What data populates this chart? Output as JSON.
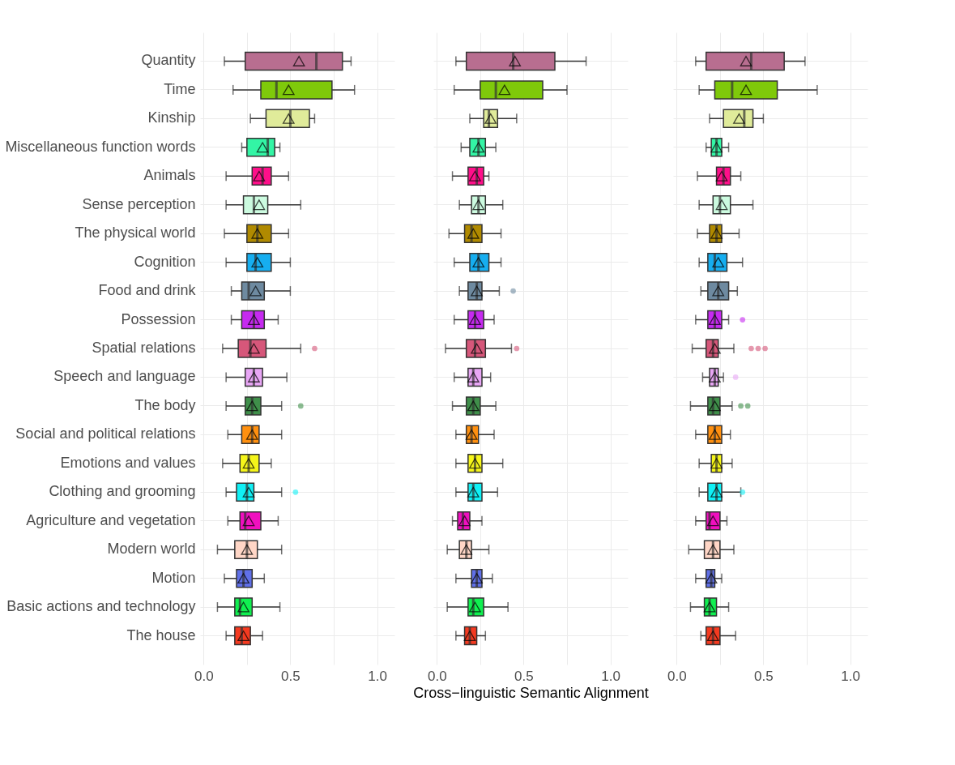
{
  "chart_data": [
    {
      "type": "box",
      "orientation": "horizontal",
      "grid": true,
      "legend": false,
      "categories": [
        "Quantity",
        "Time",
        "Kinship",
        "Miscellaneous function words",
        "Animals",
        "Sense perception",
        "The physical world",
        "Cognition",
        "Food and drink",
        "Possession",
        "Spatial relations",
        "Speech and language",
        "The body",
        "Social and political relations",
        "Emotions and values",
        "Clothing and grooming",
        "Agriculture and vegetation",
        "Modern world",
        "Motion",
        "Basic actions and technology",
        "The house"
      ],
      "colors": [
        "#b86e90",
        "#7fc90a",
        "#e0eb9a",
        "#33f5a5",
        "#ff0f8a",
        "#ccfbe0",
        "#b08a00",
        "#16aef0",
        "#6e8aa0",
        "#c62af0",
        "#d6577a",
        "#e8a6f5",
        "#3f8f4a",
        "#ff9010",
        "#f5f51a",
        "#10f0f5",
        "#f00fbf",
        "#ffd6c6",
        "#6070e8",
        "#10f050",
        "#f53a20"
      ],
      "boxes": [
        {
          "low": 0.12,
          "q1": 0.24,
          "median": 0.65,
          "q3": 0.8,
          "high": 0.85,
          "mean": 0.55
        },
        {
          "low": 0.17,
          "q1": 0.33,
          "median": 0.42,
          "q3": 0.74,
          "high": 0.87,
          "mean": 0.49
        },
        {
          "low": 0.27,
          "q1": 0.36,
          "median": 0.5,
          "q3": 0.61,
          "high": 0.64,
          "mean": 0.49
        },
        {
          "low": 0.22,
          "q1": 0.25,
          "median": 0.37,
          "q3": 0.41,
          "high": 0.44,
          "mean": 0.34
        },
        {
          "low": 0.13,
          "q1": 0.28,
          "median": 0.34,
          "q3": 0.39,
          "high": 0.49,
          "mean": 0.32
        },
        {
          "low": 0.13,
          "q1": 0.23,
          "median": 0.29,
          "q3": 0.37,
          "high": 0.56,
          "mean": 0.32
        },
        {
          "low": 0.12,
          "q1": 0.25,
          "median": 0.31,
          "q3": 0.39,
          "high": 0.49,
          "mean": 0.31
        },
        {
          "low": 0.13,
          "q1": 0.25,
          "median": 0.3,
          "q3": 0.39,
          "high": 0.5,
          "mean": 0.31
        },
        {
          "low": 0.16,
          "q1": 0.22,
          "median": 0.26,
          "q3": 0.35,
          "high": 0.5,
          "mean": 0.3
        },
        {
          "low": 0.16,
          "q1": 0.22,
          "median": 0.29,
          "q3": 0.35,
          "high": 0.43,
          "mean": 0.29
        },
        {
          "low": 0.11,
          "q1": 0.2,
          "median": 0.27,
          "q3": 0.36,
          "high": 0.56,
          "mean": 0.29,
          "outliers": [
            0.64
          ]
        },
        {
          "low": 0.13,
          "q1": 0.24,
          "median": 0.29,
          "q3": 0.34,
          "high": 0.48,
          "mean": 0.29
        },
        {
          "low": 0.13,
          "q1": 0.24,
          "median": 0.28,
          "q3": 0.33,
          "high": 0.45,
          "mean": 0.28,
          "outliers": [
            0.56
          ]
        },
        {
          "low": 0.14,
          "q1": 0.22,
          "median": 0.28,
          "q3": 0.32,
          "high": 0.45,
          "mean": 0.28
        },
        {
          "low": 0.11,
          "q1": 0.21,
          "median": 0.26,
          "q3": 0.32,
          "high": 0.39,
          "mean": 0.26
        },
        {
          "low": 0.13,
          "q1": 0.19,
          "median": 0.25,
          "q3": 0.29,
          "high": 0.45,
          "mean": 0.26,
          "outliers": [
            0.53
          ]
        },
        {
          "low": 0.14,
          "q1": 0.21,
          "median": 0.24,
          "q3": 0.33,
          "high": 0.43,
          "mean": 0.26
        },
        {
          "low": 0.08,
          "q1": 0.18,
          "median": 0.25,
          "q3": 0.31,
          "high": 0.45,
          "mean": 0.25
        },
        {
          "low": 0.12,
          "q1": 0.19,
          "median": 0.23,
          "q3": 0.28,
          "high": 0.35,
          "mean": 0.23
        },
        {
          "low": 0.08,
          "q1": 0.18,
          "median": 0.21,
          "q3": 0.28,
          "high": 0.44,
          "mean": 0.23
        },
        {
          "low": 0.13,
          "q1": 0.18,
          "median": 0.22,
          "q3": 0.27,
          "high": 0.34,
          "mean": 0.23
        }
      ],
      "xlim": [
        -0.02,
        1.1
      ],
      "xticks": [
        {
          "value": 0,
          "label": "0.0"
        },
        {
          "value": 0.25,
          "label": null
        },
        {
          "value": 0.5,
          "label": "0.5"
        },
        {
          "value": 0.75,
          "label": null
        },
        {
          "value": 1,
          "label": "1.0"
        }
      ]
    },
    {
      "type": "box",
      "orientation": "horizontal",
      "grid": true,
      "legend": false,
      "tick_labels": "x",
      "xlabel": "Cross−linguistic Semantic Alignment",
      "colors": [
        "#b86e90",
        "#7fc90a",
        "#e0eb9a",
        "#33f5a5",
        "#ff0f8a",
        "#ccfbe0",
        "#b08a00",
        "#16aef0",
        "#6e8aa0",
        "#c62af0",
        "#d6577a",
        "#e8a6f5",
        "#3f8f4a",
        "#ff9010",
        "#f5f51a",
        "#10f0f5",
        "#f00fbf",
        "#ffd6c6",
        "#6070e8",
        "#10f050",
        "#f53a20"
      ],
      "boxes": [
        {
          "low": 0.11,
          "q1": 0.17,
          "median": 0.44,
          "q3": 0.68,
          "high": 0.86,
          "mean": 0.45
        },
        {
          "low": 0.1,
          "q1": 0.25,
          "median": 0.34,
          "q3": 0.61,
          "high": 0.75,
          "mean": 0.39
        },
        {
          "low": 0.19,
          "q1": 0.27,
          "median": 0.3,
          "q3": 0.35,
          "high": 0.46,
          "mean": 0.31
        },
        {
          "low": 0.14,
          "q1": 0.19,
          "median": 0.24,
          "q3": 0.28,
          "high": 0.34,
          "mean": 0.24
        },
        {
          "low": 0.09,
          "q1": 0.18,
          "median": 0.23,
          "q3": 0.27,
          "high": 0.3,
          "mean": 0.22
        },
        {
          "low": 0.13,
          "q1": 0.2,
          "median": 0.24,
          "q3": 0.28,
          "high": 0.38,
          "mean": 0.24
        },
        {
          "low": 0.07,
          "q1": 0.16,
          "median": 0.2,
          "q3": 0.26,
          "high": 0.37,
          "mean": 0.21
        },
        {
          "low": 0.1,
          "q1": 0.19,
          "median": 0.24,
          "q3": 0.3,
          "high": 0.37,
          "mean": 0.24
        },
        {
          "low": 0.13,
          "q1": 0.18,
          "median": 0.23,
          "q3": 0.26,
          "high": 0.36,
          "mean": 0.23,
          "outliers": [
            0.44
          ]
        },
        {
          "low": 0.1,
          "q1": 0.18,
          "median": 0.22,
          "q3": 0.27,
          "high": 0.33,
          "mean": 0.22
        },
        {
          "low": 0.05,
          "q1": 0.17,
          "median": 0.22,
          "q3": 0.28,
          "high": 0.43,
          "mean": 0.23,
          "outliers": [
            0.46
          ]
        },
        {
          "low": 0.1,
          "q1": 0.18,
          "median": 0.21,
          "q3": 0.26,
          "high": 0.31,
          "mean": 0.21
        },
        {
          "low": 0.09,
          "q1": 0.17,
          "median": 0.21,
          "q3": 0.25,
          "high": 0.34,
          "mean": 0.21
        },
        {
          "low": 0.11,
          "q1": 0.17,
          "median": 0.2,
          "q3": 0.24,
          "high": 0.33,
          "mean": 0.2
        },
        {
          "low": 0.11,
          "q1": 0.18,
          "median": 0.22,
          "q3": 0.26,
          "high": 0.38,
          "mean": 0.22
        },
        {
          "low": 0.11,
          "q1": 0.18,
          "median": 0.21,
          "q3": 0.26,
          "high": 0.35,
          "mean": 0.21
        },
        {
          "low": 0.09,
          "q1": 0.12,
          "median": 0.15,
          "q3": 0.19,
          "high": 0.26,
          "mean": 0.16
        },
        {
          "low": 0.06,
          "q1": 0.13,
          "median": 0.17,
          "q3": 0.2,
          "high": 0.3,
          "mean": 0.17
        },
        {
          "low": 0.11,
          "q1": 0.2,
          "median": 0.23,
          "q3": 0.26,
          "high": 0.32,
          "mean": 0.23
        },
        {
          "low": 0.06,
          "q1": 0.18,
          "median": 0.21,
          "q3": 0.27,
          "high": 0.41,
          "mean": 0.22
        },
        {
          "low": 0.11,
          "q1": 0.16,
          "median": 0.19,
          "q3": 0.23,
          "high": 0.28,
          "mean": 0.19
        }
      ],
      "xlim": [
        -0.02,
        1.1
      ],
      "xticks": [
        {
          "value": 0,
          "label": "0.0"
        },
        {
          "value": 0.25,
          "label": null
        },
        {
          "value": 0.5,
          "label": "0.5"
        },
        {
          "value": 0.75,
          "label": null
        },
        {
          "value": 1,
          "label": "1.0"
        }
      ]
    },
    {
      "type": "box",
      "orientation": "horizontal",
      "grid": true,
      "legend": false,
      "tick_labels": "x",
      "colors": [
        "#b86e90",
        "#7fc90a",
        "#e0eb9a",
        "#33f5a5",
        "#ff0f8a",
        "#ccfbe0",
        "#b08a00",
        "#16aef0",
        "#6e8aa0",
        "#c62af0",
        "#d6577a",
        "#e8a6f5",
        "#3f8f4a",
        "#ff9010",
        "#f5f51a",
        "#10f0f5",
        "#f00fbf",
        "#ffd6c6",
        "#6070e8",
        "#10f050",
        "#f53a20"
      ],
      "boxes": [
        {
          "low": 0.11,
          "q1": 0.17,
          "median": 0.43,
          "q3": 0.62,
          "high": 0.74,
          "mean": 0.4
        },
        {
          "low": 0.13,
          "q1": 0.22,
          "median": 0.32,
          "q3": 0.58,
          "high": 0.81,
          "mean": 0.4
        },
        {
          "low": 0.19,
          "q1": 0.27,
          "median": 0.39,
          "q3": 0.44,
          "high": 0.5,
          "mean": 0.36
        },
        {
          "low": 0.17,
          "q1": 0.2,
          "median": 0.23,
          "q3": 0.26,
          "high": 0.3,
          "mean": 0.23
        },
        {
          "low": 0.12,
          "q1": 0.23,
          "median": 0.27,
          "q3": 0.31,
          "high": 0.37,
          "mean": 0.26
        },
        {
          "low": 0.13,
          "q1": 0.21,
          "median": 0.25,
          "q3": 0.31,
          "high": 0.44,
          "mean": 0.26
        },
        {
          "low": 0.12,
          "q1": 0.19,
          "median": 0.23,
          "q3": 0.26,
          "high": 0.36,
          "mean": 0.23
        },
        {
          "low": 0.13,
          "q1": 0.18,
          "median": 0.22,
          "q3": 0.29,
          "high": 0.38,
          "mean": 0.24
        },
        {
          "low": 0.14,
          "q1": 0.18,
          "median": 0.24,
          "q3": 0.3,
          "high": 0.35,
          "mean": 0.24
        },
        {
          "low": 0.11,
          "q1": 0.18,
          "median": 0.22,
          "q3": 0.26,
          "high": 0.3,
          "mean": 0.22,
          "outliers": [
            0.38
          ]
        },
        {
          "low": 0.09,
          "q1": 0.17,
          "median": 0.21,
          "q3": 0.24,
          "high": 0.33,
          "mean": 0.22,
          "outliers": [
            0.43,
            0.47,
            0.51
          ]
        },
        {
          "low": 0.15,
          "q1": 0.19,
          "median": 0.22,
          "q3": 0.24,
          "high": 0.27,
          "mean": 0.22,
          "outliers": [
            0.34
          ]
        },
        {
          "low": 0.08,
          "q1": 0.18,
          "median": 0.21,
          "q3": 0.25,
          "high": 0.32,
          "mean": 0.22,
          "outliers": [
            0.37,
            0.41
          ]
        },
        {
          "low": 0.11,
          "q1": 0.18,
          "median": 0.22,
          "q3": 0.26,
          "high": 0.31,
          "mean": 0.22
        },
        {
          "low": 0.13,
          "q1": 0.2,
          "median": 0.23,
          "q3": 0.26,
          "high": 0.32,
          "mean": 0.23
        },
        {
          "low": 0.13,
          "q1": 0.18,
          "median": 0.23,
          "q3": 0.26,
          "high": 0.37,
          "mean": 0.23,
          "outliers": [
            0.38
          ]
        },
        {
          "low": 0.11,
          "q1": 0.17,
          "median": 0.19,
          "q3": 0.25,
          "high": 0.29,
          "mean": 0.21
        },
        {
          "low": 0.07,
          "q1": 0.16,
          "median": 0.21,
          "q3": 0.25,
          "high": 0.33,
          "mean": 0.21
        },
        {
          "low": 0.11,
          "q1": 0.17,
          "median": 0.2,
          "q3": 0.22,
          "high": 0.26,
          "mean": 0.2
        },
        {
          "low": 0.08,
          "q1": 0.16,
          "median": 0.19,
          "q3": 0.23,
          "high": 0.3,
          "mean": 0.19
        },
        {
          "low": 0.14,
          "q1": 0.17,
          "median": 0.21,
          "q3": 0.25,
          "high": 0.34,
          "mean": 0.21
        }
      ],
      "xlim": [
        -0.02,
        1.1
      ],
      "xticks": [
        {
          "value": 0,
          "label": "0.0"
        },
        {
          "value": 0.25,
          "label": null
        },
        {
          "value": 0.5,
          "label": "0.5"
        },
        {
          "value": 0.75,
          "label": null
        },
        {
          "value": 1,
          "label": "1.0"
        }
      ]
    }
  ]
}
